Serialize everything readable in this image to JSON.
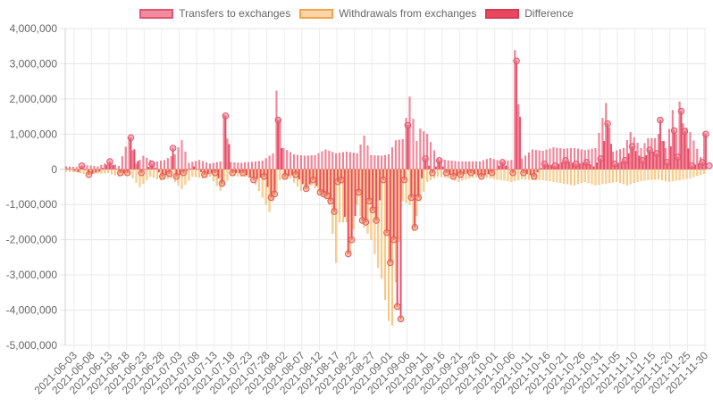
{
  "chart_data": {
    "type": "bar",
    "start_date": "2021-06-01",
    "end_date": "2021-12-01",
    "x_tick_labels": [
      "2021-06-03",
      "2021-06-08",
      "2021-06-13",
      "2021-06-18",
      "2021-06-23",
      "2021-06-28",
      "2021-07-03",
      "2021-07-08",
      "2021-07-13",
      "2021-07-18",
      "2021-07-23",
      "2021-07-28",
      "2021-08-02",
      "2021-08-07",
      "2021-08-12",
      "2021-08-17",
      "2021-08-22",
      "2021-08-27",
      "2021-09-01",
      "2021-09-06",
      "2021-09-11",
      "2021-09-16",
      "2021-09-21",
      "2021-09-26",
      "2021-10-01",
      "2021-10-06",
      "2021-10-11",
      "2021-10-16",
      "2021-10-21",
      "2021-10-26",
      "2021-10-31",
      "2021-11-05",
      "2021-11-10",
      "2021-11-15",
      "2021-11-20",
      "2021-11-25",
      "2021-11-30"
    ],
    "ylim": [
      -5000000,
      4000000
    ],
    "y_ticks": [
      4000000,
      3000000,
      2000000,
      1000000,
      0,
      -1000000,
      -2000000,
      -3000000,
      -4000000,
      -5000000
    ],
    "y_tick_labels": [
      "4,000,000",
      "3,000,000",
      "2,000,000",
      "1,000,000",
      "0",
      "-1,000,000",
      "-2,000,000",
      "-3,000,000",
      "-4,000,000",
      "-5,000,000"
    ],
    "grid": true,
    "legend_position": "top",
    "series": [
      {
        "name": "Transfers to exchanges",
        "color": "#e8546e",
        "fill": "#f08a9c",
        "anchors": [
          [
            0,
            80000
          ],
          [
            3,
            60000
          ],
          [
            6,
            110000
          ],
          [
            9,
            80000
          ],
          [
            12,
            200000
          ],
          [
            15,
            90000
          ],
          [
            18,
            910000
          ],
          [
            20,
            150000
          ],
          [
            22,
            380000
          ],
          [
            25,
            200000
          ],
          [
            28,
            260000
          ],
          [
            31,
            420000
          ],
          [
            33,
            820000
          ],
          [
            35,
            180000
          ],
          [
            38,
            260000
          ],
          [
            41,
            160000
          ],
          [
            44,
            220000
          ],
          [
            45,
            1540000
          ],
          [
            47,
            200000
          ],
          [
            50,
            180000
          ],
          [
            53,
            210000
          ],
          [
            56,
            240000
          ],
          [
            59,
            450000
          ],
          [
            60,
            2230000
          ],
          [
            62,
            600000
          ],
          [
            65,
            420000
          ],
          [
            68,
            380000
          ],
          [
            71,
            400000
          ],
          [
            74,
            560000
          ],
          [
            77,
            450000
          ],
          [
            80,
            500000
          ],
          [
            83,
            450000
          ],
          [
            85,
            950000
          ],
          [
            87,
            400000
          ],
          [
            90,
            380000
          ],
          [
            92,
            420000
          ],
          [
            94,
            820000
          ],
          [
            96,
            850000
          ],
          [
            98,
            2060000
          ],
          [
            100,
            800000
          ],
          [
            101,
            1150000
          ],
          [
            103,
            1000000
          ],
          [
            106,
            300000
          ],
          [
            109,
            250000
          ],
          [
            112,
            220000
          ],
          [
            115,
            220000
          ],
          [
            118,
            220000
          ],
          [
            121,
            320000
          ],
          [
            124,
            220000
          ],
          [
            127,
            260000
          ],
          [
            128,
            3380000
          ],
          [
            130,
            300000
          ],
          [
            133,
            560000
          ],
          [
            136,
            520000
          ],
          [
            139,
            620000
          ],
          [
            142,
            580000
          ],
          [
            145,
            600000
          ],
          [
            148,
            540000
          ],
          [
            151,
            600000
          ],
          [
            154,
            1880000
          ],
          [
            156,
            500000
          ],
          [
            159,
            600000
          ],
          [
            161,
            1050000
          ],
          [
            164,
            600000
          ],
          [
            166,
            880000
          ],
          [
            168,
            880000
          ],
          [
            169,
            1000000
          ],
          [
            171,
            600000
          ],
          [
            173,
            1680000
          ],
          [
            174,
            1000000
          ],
          [
            175,
            1920000
          ],
          [
            176,
            1300000
          ],
          [
            178,
            1050000
          ],
          [
            181,
            340000
          ],
          [
            182,
            1030000
          ],
          [
            183,
            150000
          ]
        ]
      },
      {
        "name": "Withdrawals from exchanges",
        "color": "#f0a030",
        "fill": "#fbd39a",
        "anchors": [
          [
            0,
            -60000
          ],
          [
            3,
            -80000
          ],
          [
            6,
            -150000
          ],
          [
            9,
            -120000
          ],
          [
            12,
            -100000
          ],
          [
            15,
            -200000
          ],
          [
            18,
            -120000
          ],
          [
            21,
            -500000
          ],
          [
            24,
            -200000
          ],
          [
            27,
            -300000
          ],
          [
            30,
            -250000
          ],
          [
            33,
            -550000
          ],
          [
            36,
            -200000
          ],
          [
            39,
            -250000
          ],
          [
            41,
            -200000
          ],
          [
            44,
            -600000
          ],
          [
            47,
            -180000
          ],
          [
            50,
            -200000
          ],
          [
            53,
            -240000
          ],
          [
            56,
            -800000
          ],
          [
            58,
            -1200000
          ],
          [
            61,
            -300000
          ],
          [
            64,
            -250000
          ],
          [
            67,
            -600000
          ],
          [
            70,
            -450000
          ],
          [
            73,
            -700000
          ],
          [
            75,
            -1000000
          ],
          [
            77,
            -2650000
          ],
          [
            78,
            -1500000
          ],
          [
            80,
            -1500000
          ],
          [
            81,
            -2400000
          ],
          [
            83,
            -1000000
          ],
          [
            85,
            -1650000
          ],
          [
            87,
            -2000000
          ],
          [
            89,
            -2800000
          ],
          [
            90,
            -3100000
          ],
          [
            92,
            -4300000
          ],
          [
            93,
            -4430000
          ],
          [
            94,
            -3200000
          ],
          [
            96,
            -900000
          ],
          [
            98,
            -1000000
          ],
          [
            99,
            -1750000
          ],
          [
            101,
            -900000
          ],
          [
            103,
            -350000
          ],
          [
            106,
            -200000
          ],
          [
            109,
            -250000
          ],
          [
            112,
            -350000
          ],
          [
            115,
            -250000
          ],
          [
            118,
            -200000
          ],
          [
            121,
            -250000
          ],
          [
            124,
            -300000
          ],
          [
            127,
            -350000
          ],
          [
            130,
            -280000
          ],
          [
            133,
            -300000
          ],
          [
            136,
            -300000
          ],
          [
            139,
            -350000
          ],
          [
            142,
            -400000
          ],
          [
            145,
            -450000
          ],
          [
            148,
            -350000
          ],
          [
            151,
            -450000
          ],
          [
            154,
            -400000
          ],
          [
            157,
            -350000
          ],
          [
            160,
            -450000
          ],
          [
            163,
            -350000
          ],
          [
            166,
            -300000
          ],
          [
            169,
            -280000
          ],
          [
            172,
            -350000
          ],
          [
            175,
            -300000
          ],
          [
            178,
            -250000
          ],
          [
            181,
            -150000
          ],
          [
            183,
            -100000
          ]
        ]
      },
      {
        "name": "Difference",
        "color": "#e8546e",
        "fill": "#e84a64",
        "anchors": [
          [
            0,
            20000
          ],
          [
            3,
            -80000
          ],
          [
            4,
            100000
          ],
          [
            6,
            -150000
          ],
          [
            9,
            -60000
          ],
          [
            12,
            220000
          ],
          [
            15,
            -100000
          ],
          [
            17,
            -100000
          ],
          [
            18,
            900000
          ],
          [
            21,
            -100000
          ],
          [
            24,
            150000
          ],
          [
            27,
            -200000
          ],
          [
            29,
            -120000
          ],
          [
            30,
            600000
          ],
          [
            31,
            -200000
          ],
          [
            33,
            -100000
          ],
          [
            36,
            80000
          ],
          [
            39,
            -150000
          ],
          [
            42,
            -100000
          ],
          [
            44,
            -400000
          ],
          [
            45,
            1520000
          ],
          [
            47,
            -100000
          ],
          [
            50,
            -100000
          ],
          [
            53,
            -300000
          ],
          [
            56,
            -200000
          ],
          [
            58,
            -800000
          ],
          [
            59,
            -700000
          ],
          [
            60,
            1400000
          ],
          [
            62,
            -200000
          ],
          [
            65,
            -150000
          ],
          [
            68,
            -550000
          ],
          [
            70,
            -300000
          ],
          [
            72,
            -650000
          ],
          [
            73,
            -700000
          ],
          [
            74,
            -750000
          ],
          [
            75,
            -900000
          ],
          [
            76,
            -1200000
          ],
          [
            77,
            -350000
          ],
          [
            78,
            -300000
          ],
          [
            80,
            -2400000
          ],
          [
            81,
            -2000000
          ],
          [
            83,
            -650000
          ],
          [
            84,
            -1450000
          ],
          [
            85,
            -1500000
          ],
          [
            86,
            -900000
          ],
          [
            87,
            -1150000
          ],
          [
            88,
            -1450000
          ],
          [
            90,
            -300000
          ],
          [
            91,
            -1800000
          ],
          [
            92,
            -2650000
          ],
          [
            93,
            -2000000
          ],
          [
            94,
            -3900000
          ],
          [
            95,
            -4250000
          ],
          [
            96,
            -300000
          ],
          [
            97,
            1250000
          ],
          [
            98,
            -800000
          ],
          [
            99,
            -1650000
          ],
          [
            100,
            -800000
          ],
          [
            102,
            300000
          ],
          [
            104,
            -100000
          ],
          [
            106,
            250000
          ],
          [
            108,
            -100000
          ],
          [
            110,
            -200000
          ],
          [
            112,
            -150000
          ],
          [
            115,
            -100000
          ],
          [
            118,
            -200000
          ],
          [
            121,
            -100000
          ],
          [
            124,
            200000
          ],
          [
            127,
            -100000
          ],
          [
            128,
            3080000
          ],
          [
            130,
            -100000
          ],
          [
            133,
            -200000
          ],
          [
            136,
            150000
          ],
          [
            139,
            100000
          ],
          [
            142,
            250000
          ],
          [
            145,
            150000
          ],
          [
            148,
            200000
          ],
          [
            150,
            80000
          ],
          [
            152,
            300000
          ],
          [
            154,
            1300000
          ],
          [
            156,
            150000
          ],
          [
            159,
            250000
          ],
          [
            161,
            650000
          ],
          [
            164,
            250000
          ],
          [
            166,
            550000
          ],
          [
            168,
            450000
          ],
          [
            169,
            1400000
          ],
          [
            171,
            200000
          ],
          [
            173,
            1100000
          ],
          [
            174,
            350000
          ],
          [
            175,
            1650000
          ],
          [
            176,
            1080000
          ],
          [
            178,
            100000
          ],
          [
            181,
            200000
          ],
          [
            182,
            1000000
          ],
          [
            183,
            100000
          ]
        ]
      }
    ]
  },
  "legend": [
    {
      "label": "Transfers to exchanges",
      "fill": "#f28aa0",
      "stroke": "#e0566f"
    },
    {
      "label": "Withdrawals from exchanges",
      "fill": "#fdd6a8",
      "stroke": "#f4a450"
    },
    {
      "label": "Difference",
      "fill": "#e8475f",
      "stroke": "#d93a53"
    }
  ]
}
